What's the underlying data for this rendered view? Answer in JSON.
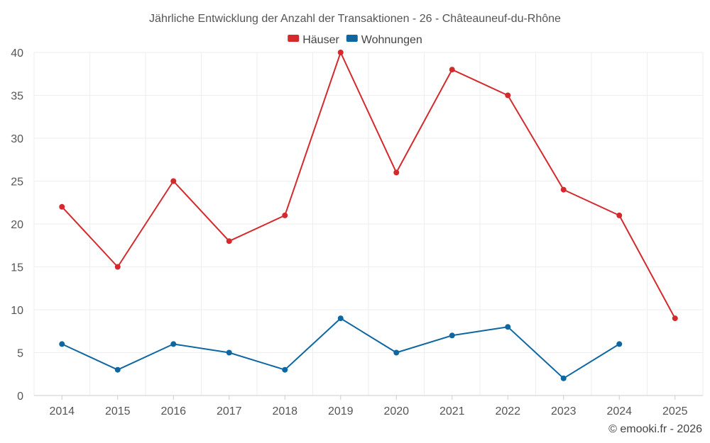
{
  "chart_data": {
    "type": "line",
    "title": "Jährliche Entwicklung der Anzahl der Transaktionen - 26 - Châteauneuf-du-Rhône",
    "xlabel": "",
    "ylabel": "",
    "categories": [
      "2014",
      "2015",
      "2016",
      "2017",
      "2018",
      "2019",
      "2020",
      "2021",
      "2022",
      "2023",
      "2024",
      "2025"
    ],
    "ylim": [
      0,
      40
    ],
    "yticks": [
      "0",
      "5",
      "10",
      "15",
      "20",
      "25",
      "30",
      "35",
      "40"
    ],
    "grid": true,
    "legend_position": "top",
    "series": [
      {
        "name": "Häuser",
        "color": "#d42a2d",
        "values": [
          22,
          15,
          25,
          18,
          21,
          40,
          26,
          38,
          35,
          24,
          21,
          9
        ]
      },
      {
        "name": "Wohnungen",
        "color": "#0f67a1",
        "values": [
          6,
          3,
          6,
          5,
          3,
          9,
          5,
          7,
          8,
          2,
          6,
          null
        ]
      }
    ]
  },
  "credit": "© emooki.fr - 2026"
}
